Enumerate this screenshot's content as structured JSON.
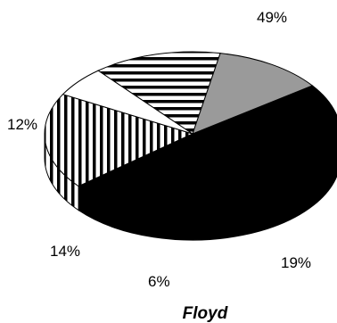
{
  "chart_data": {
    "type": "pie",
    "title": "Floyd",
    "slices": [
      {
        "label": "49%",
        "value": 49,
        "color": "#000000",
        "pattern": "solid"
      },
      {
        "label": "19%",
        "value": 19,
        "color": "#ffffff",
        "pattern": "vertical-stripes"
      },
      {
        "label": "",
        "value": 6,
        "color": "#ffffff",
        "pattern": "solid"
      },
      {
        "label": "14%",
        "value": 14,
        "color": "#ffffff",
        "pattern": "horizontal-stripes"
      },
      {
        "label": "12%",
        "value": 12,
        "color": "#9a9a9a",
        "pattern": "solid"
      }
    ],
    "outside_labels": [
      "49%",
      "19%",
      "6%",
      "14%",
      "12%"
    ],
    "style": "3d"
  }
}
